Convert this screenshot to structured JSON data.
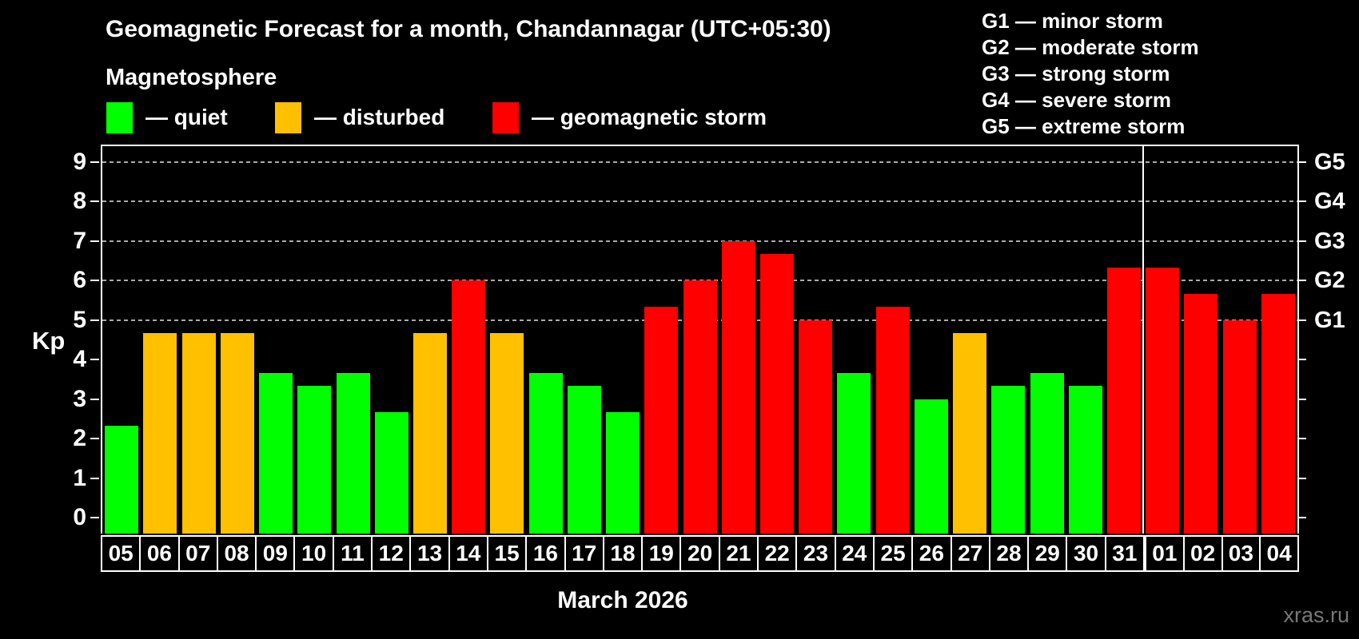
{
  "title": "Geomagnetic Forecast for a month, Chandannagar (UTC+05:30)",
  "subtitle": "Magnetosphere",
  "legend": {
    "items": [
      {
        "label": "— quiet",
        "status": "quiet",
        "color": "#00ff00"
      },
      {
        "label": "— disturbed",
        "status": "disturbed",
        "color": "#ffc000"
      },
      {
        "label": "— geomagnetic storm",
        "status": "storm",
        "color": "#ff0000"
      }
    ]
  },
  "storm_scale_legend": {
    "lines": [
      "G1 — minor storm",
      "G2 — moderate storm",
      "G3 — strong storm",
      "G4 — severe storm",
      "G5 — extreme storm"
    ]
  },
  "axes": {
    "y_label": "Kp",
    "y_ticks": [
      0,
      1,
      2,
      3,
      4,
      5,
      6,
      7,
      8,
      9
    ],
    "right_labels": [
      {
        "text": "G5",
        "kp": 9
      },
      {
        "text": "G4",
        "kp": 8
      },
      {
        "text": "G3",
        "kp": 7
      },
      {
        "text": "G2",
        "kp": 6
      },
      {
        "text": "G1",
        "kp": 5
      }
    ]
  },
  "x_axis_title": "March 2026",
  "watermark": "xras.ru",
  "chart_data": {
    "type": "bar",
    "title": "Geomagnetic Forecast for a month, Chandannagar (UTC+05:30)",
    "ylabel": "Kp",
    "ylim": [
      -0.4,
      9.4
    ],
    "grid": "dashed horizontal at Kp 5-9 only",
    "gridlines_kp": [
      5,
      6,
      7,
      8,
      9
    ],
    "legend_position": "top-left",
    "categories": [
      "05",
      "06",
      "07",
      "08",
      "09",
      "10",
      "11",
      "12",
      "13",
      "14",
      "15",
      "16",
      "17",
      "18",
      "19",
      "20",
      "21",
      "22",
      "23",
      "24",
      "25",
      "26",
      "27",
      "28",
      "29",
      "30",
      "31",
      "01",
      "02",
      "03",
      "04"
    ],
    "values": [
      2.33,
      4.67,
      4.67,
      4.67,
      3.67,
      3.33,
      3.67,
      2.67,
      4.67,
      6,
      4.67,
      3.67,
      3.33,
      2.67,
      5.33,
      6,
      7,
      6.67,
      5,
      3.67,
      5.33,
      3,
      4.67,
      3.33,
      3.67,
      3.33,
      6.33,
      6.33,
      5.67,
      5,
      5.67
    ],
    "statuses": [
      "quiet",
      "disturbed",
      "disturbed",
      "disturbed",
      "quiet",
      "quiet",
      "quiet",
      "quiet",
      "disturbed",
      "storm",
      "disturbed",
      "quiet",
      "quiet",
      "quiet",
      "storm",
      "storm",
      "storm",
      "storm",
      "storm",
      "quiet",
      "storm",
      "quiet",
      "disturbed",
      "quiet",
      "quiet",
      "quiet",
      "storm",
      "storm",
      "storm",
      "storm",
      "storm"
    ],
    "status_colors": {
      "quiet": "#00ff00",
      "disturbed": "#ffc000",
      "storm": "#ff0000"
    },
    "month_separator_after": "31",
    "x_axis_title": "March 2026",
    "right_axis_g_scale": {
      "G1": 5,
      "G2": 6,
      "G3": 7,
      "G4": 8,
      "G5": 9
    }
  }
}
